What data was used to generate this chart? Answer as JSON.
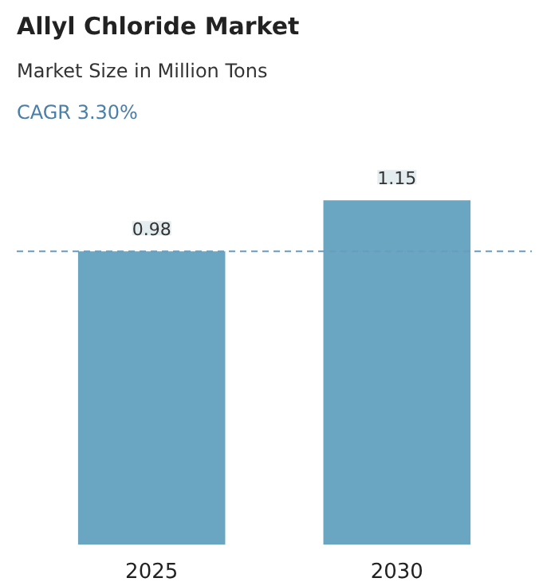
{
  "chart_data": {
    "type": "bar",
    "title": "Allyl Chloride Market",
    "subtitle": "Market Size in Million Tons",
    "annotations": [
      "CAGR 3.30%"
    ],
    "categories": [
      "2025",
      "2030"
    ],
    "values": [
      0.98,
      1.15
    ],
    "color": "#6aa6c2",
    "data_labels": true,
    "ref_lines": [
      {
        "axis": "y",
        "value": 0.98,
        "color": "#6a9cc0",
        "line_style": "dashed"
      }
    ],
    "grid": false
  }
}
